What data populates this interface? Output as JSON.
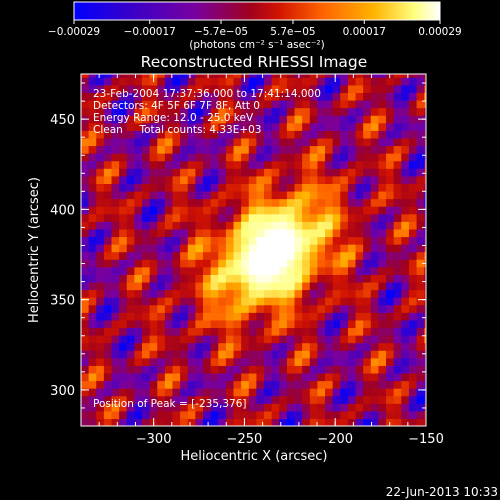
{
  "chart_data": {
    "type": "heatmap",
    "title": "Reconstructed RHESSI Image",
    "xlabel": "Heliocentric X (arcsec)",
    "ylabel": "Heliocentric Y (arcsec)",
    "xlim": [
      -340,
      -150
    ],
    "ylim": [
      280,
      475
    ],
    "x_ticks": [
      -300,
      -250,
      -200,
      -150
    ],
    "x_tick_labels": [
      "−300",
      "−250",
      "−200",
      "−150"
    ],
    "y_ticks": [
      300,
      350,
      400,
      450
    ],
    "y_tick_labels": [
      "300",
      "350",
      "400",
      "450"
    ],
    "colorbar": {
      "range": [
        -0.00029,
        0.00029
      ],
      "ticks": [
        -0.00029,
        -0.00017,
        -5.7e-05,
        5.7e-05,
        0.00017,
        0.00029
      ],
      "tick_labels": [
        "−0.00029",
        "−0.00017",
        "−5.7e−05",
        "5.7e−05",
        "0.00017",
        "0.00029"
      ],
      "unit_label": "(photons cm⁻² s⁻¹ asec⁻²)",
      "colors": [
        "#0000ff",
        "#3a00c8",
        "#7800a0",
        "#a0001e",
        "#d21400",
        "#ff6400",
        "#ffb400",
        "#ffff80",
        "#ffffff"
      ]
    },
    "annotations": [
      "23-Feb-2004 17:37:36.000 to 17:41:14.000",
      "Detectors: 4F 5F 6F 7F 8F, Att 0",
      "Energy Range: 12.0 - 25.0 keV",
      "Clean     Total counts: 4.33E+03"
    ],
    "peak_label": "Position of Peak = [-235,376]",
    "peak": [
      -235,
      376
    ]
  },
  "footer": {
    "date": "22-Jun-2013 10:33"
  }
}
